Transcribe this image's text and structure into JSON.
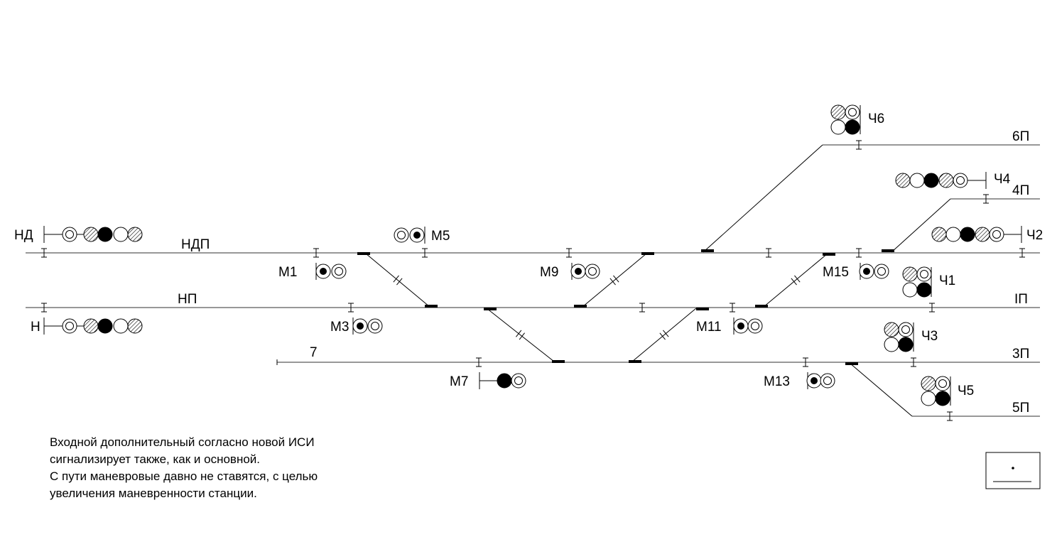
{
  "tracks": [
    {
      "id": "ndp",
      "label": "НДП"
    },
    {
      "id": "np",
      "label": "НП"
    },
    {
      "id": "t7",
      "label": "7"
    },
    {
      "id": "t6",
      "label": "6П"
    },
    {
      "id": "t4",
      "label": "4П"
    },
    {
      "id": "t1",
      "label": "ІП"
    },
    {
      "id": "t3",
      "label": "3П"
    },
    {
      "id": "t5",
      "label": "5П"
    }
  ],
  "signals": [
    {
      "id": "nd",
      "label": "НД",
      "lamps": [
        "ring",
        "hatched",
        "filled",
        "empty",
        "hatched"
      ]
    },
    {
      "id": "n",
      "label": "Н",
      "lamps": [
        "ring",
        "hatched",
        "filled",
        "empty",
        "hatched"
      ]
    },
    {
      "id": "m5",
      "label": "М5",
      "lamps": [
        "ring",
        "dot"
      ]
    },
    {
      "id": "m1",
      "label": "М1",
      "lamps": [
        "dot",
        "ring"
      ]
    },
    {
      "id": "m3",
      "label": "М3",
      "lamps": [
        "dot",
        "ring"
      ]
    },
    {
      "id": "m9",
      "label": "М9",
      "lamps": [
        "dot",
        "ring"
      ]
    },
    {
      "id": "m15",
      "label": "М15",
      "lamps": [
        "dot",
        "ring"
      ]
    },
    {
      "id": "m11",
      "label": "М11",
      "lamps": [
        "dot",
        "ring"
      ]
    },
    {
      "id": "m7",
      "label": "М7",
      "lamps": [
        "filled",
        "ring"
      ]
    },
    {
      "id": "m13",
      "label": "М13",
      "lamps": [
        "dot",
        "ring"
      ]
    },
    {
      "id": "ch6",
      "label": "Ч6",
      "lamps": [
        "hatched",
        "ring",
        "empty",
        "filled"
      ]
    },
    {
      "id": "ch1",
      "label": "Ч1",
      "lamps": [
        "hatched",
        "ring",
        "empty",
        "filled"
      ]
    },
    {
      "id": "ch3",
      "label": "Ч3",
      "lamps": [
        "hatched",
        "ring",
        "empty",
        "filled"
      ]
    },
    {
      "id": "ch5",
      "label": "Ч5",
      "lamps": [
        "hatched",
        "ring",
        "empty",
        "filled"
      ]
    },
    {
      "id": "ch4",
      "label": "Ч4",
      "lamps": [
        "hatched",
        "empty",
        "filled",
        "hatched",
        "ring"
      ]
    },
    {
      "id": "ch2",
      "label": "Ч2",
      "lamps": [
        "hatched",
        "empty",
        "filled",
        "hatched",
        "ring"
      ]
    }
  ],
  "note": [
    "Входной дополнительный согласно новой ИСИ",
    "сигнализирует также, как и основной.",
    "С пути маневровые давно не ставятся, с целью",
    "увеличения маневренности станции."
  ],
  "colors": {
    "track": "#777777",
    "line": "#000000"
  }
}
